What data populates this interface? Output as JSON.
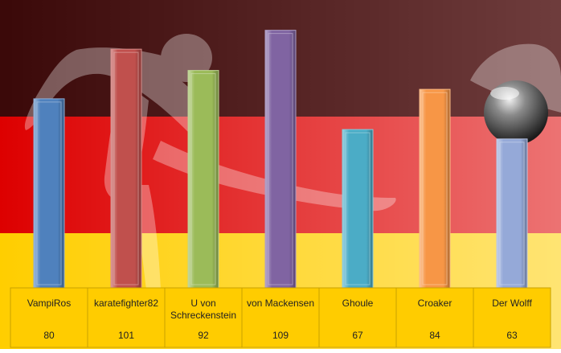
{
  "chart_data": {
    "type": "bar",
    "categories": [
      "VampiRos",
      "karatefighter82",
      "U von Schreckenstein",
      "von Mackensen",
      "Ghoule",
      "Croaker",
      "Der Wolff"
    ],
    "category_lines": [
      [
        "VampiRos"
      ],
      [
        "karatefighter82"
      ],
      [
        "U von",
        "Schreckenstein"
      ],
      [
        "von Mackensen"
      ],
      [
        "Ghoule"
      ],
      [
        "Croaker"
      ],
      [
        "Der Wolff"
      ]
    ],
    "values": [
      80,
      101,
      92,
      109,
      67,
      84,
      63
    ],
    "colors": [
      "#4F81BD",
      "#C0504D",
      "#9BBB59",
      "#8064A2",
      "#4BACC6",
      "#F79646",
      "#95A9D8"
    ],
    "ylim": [
      0,
      115
    ],
    "background": {
      "stripes": [
        "#000000",
        "#DD0000",
        "#FFCE00"
      ]
    },
    "table_fill": "#FFCC00",
    "grid": false,
    "legend": "none"
  }
}
